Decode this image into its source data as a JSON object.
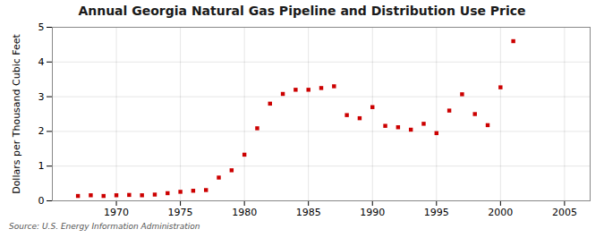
{
  "chart_data": {
    "type": "scatter",
    "title": "Annual Georgia Natural Gas Pipeline and Distribution Use Price",
    "ylabel": "Dollars per Thousand Cubic Feet",
    "source": "Source: U.S. Energy Information Administration",
    "x": [
      1967,
      1968,
      1969,
      1970,
      1971,
      1972,
      1973,
      1974,
      1975,
      1976,
      1977,
      1978,
      1979,
      1980,
      1981,
      1982,
      1983,
      1984,
      1985,
      1986,
      1987,
      1988,
      1989,
      1990,
      1991,
      1992,
      1993,
      1994,
      1995,
      1996,
      1997,
      1998,
      1999,
      2000,
      2001
    ],
    "values": [
      0.14,
      0.16,
      0.14,
      0.16,
      0.17,
      0.16,
      0.18,
      0.22,
      0.26,
      0.29,
      0.31,
      0.67,
      0.88,
      1.33,
      2.09,
      2.8,
      3.08,
      3.2,
      3.2,
      3.25,
      3.3,
      2.47,
      2.38,
      2.7,
      2.16,
      2.12,
      2.05,
      2.22,
      1.95,
      2.6,
      3.07,
      2.5,
      2.18,
      3.27,
      4.6
    ],
    "color": "#cc0000",
    "marker": "square",
    "xlim": [
      1965,
      2007
    ],
    "ylim": [
      0,
      5
    ],
    "xticks": [
      1970,
      1975,
      1980,
      1985,
      1990,
      1995,
      2000,
      2005
    ],
    "yticks": [
      0,
      1,
      2,
      3,
      4,
      5
    ],
    "grid": true
  }
}
